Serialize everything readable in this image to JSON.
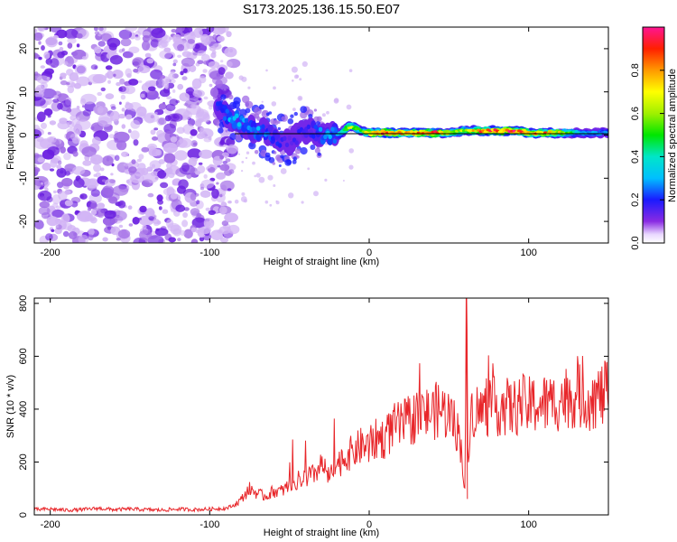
{
  "title": "S173.2025.136.15.50.E07",
  "colors": {
    "snr_line": "#e8262a",
    "blob_faint": "#d2b4f5",
    "blob_mid": "#a06ae6",
    "blob_dark": "#6a1ee0",
    "frame": "#000000"
  },
  "chart_data": [
    {
      "type": "heatmap",
      "xlabel": "Height of straight line (km)",
      "ylabel": "Frequency (Hz)",
      "xlim": [
        -210,
        150
      ],
      "ylim": [
        -25,
        25
      ],
      "xticks": [
        -200,
        -100,
        0,
        100
      ],
      "xtick_labels": [
        "-200",
        "-100",
        "0",
        "100"
      ],
      "yticks": [
        20,
        10,
        0,
        -10,
        -20
      ],
      "ytick_labels": [
        "20",
        "10",
        "0",
        "-10",
        "-20"
      ],
      "grid": false,
      "colormap": "rainbow",
      "colorbar": {
        "label": "Normalized spectral amplitude",
        "range": [
          0,
          1
        ],
        "ticks": [
          0.0,
          0.2,
          0.4,
          0.6,
          0.8
        ],
        "tick_labels": [
          "0.0",
          "0.2",
          "0.4",
          "0.6",
          "0.8"
        ]
      },
      "reference_line": {
        "frequency": 0
      },
      "ridge": {
        "x": [
          -95,
          -87,
          -80,
          -72,
          -65,
          -58,
          -50,
          -42,
          -35,
          -28,
          -20,
          -12,
          -5,
          0,
          10,
          20,
          30,
          40,
          50,
          60,
          70,
          80,
          90,
          100,
          110,
          120,
          130,
          140,
          150
        ],
        "frequency": [
          7,
          4,
          3,
          1,
          1,
          -1,
          -2,
          1,
          1,
          0,
          0,
          2,
          1,
          0.5,
          0.5,
          0.5,
          0.5,
          0.5,
          0.5,
          1,
          1,
          1,
          1,
          0.5,
          0.5,
          0.5,
          0.5,
          0.5,
          0.5
        ],
        "amplitude": [
          0.2,
          0.3,
          0.3,
          0.3,
          0.25,
          0.2,
          0.15,
          0.2,
          0.2,
          0.3,
          0.3,
          0.7,
          0.5,
          0.8,
          0.95,
          0.8,
          0.9,
          0.9,
          0.7,
          0.6,
          0.85,
          0.9,
          0.95,
          0.8,
          0.85,
          0.7,
          0.4,
          0.3,
          0.3
        ]
      },
      "noise_region": {
        "x_range": [
          -210,
          -85
        ],
        "frequency_range": [
          -25,
          25
        ],
        "amplitude": "low"
      }
    },
    {
      "type": "line",
      "xlabel": "Height of straight line (km)",
      "ylabel": "SNR (10 * v/v)",
      "xlim": [
        -210,
        150
      ],
      "ylim": [
        0,
        820
      ],
      "xticks": [
        -200,
        -100,
        0,
        100
      ],
      "xtick_labels": [
        "-200",
        "-100",
        "0",
        "100"
      ],
      "yticks": [
        0,
        200,
        400,
        600,
        800
      ],
      "ytick_labels": [
        "0",
        "200",
        "400",
        "600",
        "800"
      ],
      "grid": false,
      "series": [
        {
          "x": [
            -210,
            -200,
            -190,
            -180,
            -170,
            -160,
            -150,
            -140,
            -130,
            -120,
            -110,
            -100,
            -90,
            -85,
            -80,
            -75,
            -70,
            -65,
            -60,
            -55,
            -50,
            -45,
            -40,
            -35,
            -30,
            -25,
            -20,
            -15,
            -10,
            -5,
            0,
            5,
            10,
            15,
            20,
            25,
            30,
            35,
            40,
            45,
            50,
            55,
            58,
            60,
            61,
            62,
            63,
            65,
            70,
            75,
            80,
            85,
            90,
            95,
            100,
            105,
            110,
            115,
            120,
            125,
            130,
            135,
            140,
            145,
            150
          ],
          "values": [
            20,
            22,
            18,
            20,
            25,
            20,
            22,
            20,
            18,
            22,
            20,
            22,
            25,
            35,
            60,
            100,
            80,
            70,
            90,
            90,
            110,
            130,
            140,
            150,
            190,
            140,
            190,
            220,
            240,
            260,
            260,
            290,
            290,
            330,
            340,
            350,
            380,
            380,
            390,
            400,
            380,
            330,
            250,
            80,
            810,
            100,
            380,
            400,
            390,
            410,
            410,
            410,
            400,
            420,
            410,
            420,
            420,
            420,
            440,
            450,
            450,
            440,
            440,
            450,
            460
          ]
        }
      ]
    }
  ]
}
